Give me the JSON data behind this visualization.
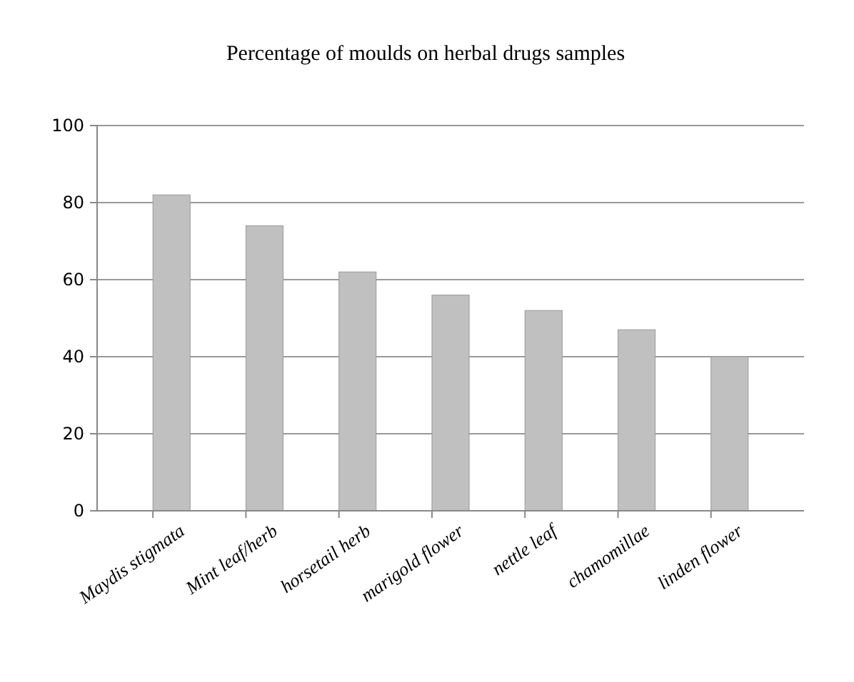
{
  "chart_data": {
    "type": "bar",
    "title": "Percentage of moulds on herbal drugs samples",
    "categories": [
      "Maydis stigmata",
      "Mint leaf/herb",
      "horsetail herb",
      "marigold flower",
      "nettle leaf",
      "chamomillae",
      "linden flower"
    ],
    "values": [
      82,
      74,
      62,
      56,
      52,
      47,
      40
    ],
    "color": "#c0c0c0",
    "ylim": [
      0,
      100
    ],
    "yticks": [
      0,
      20,
      40,
      60,
      80,
      100
    ],
    "grid": "y"
  }
}
